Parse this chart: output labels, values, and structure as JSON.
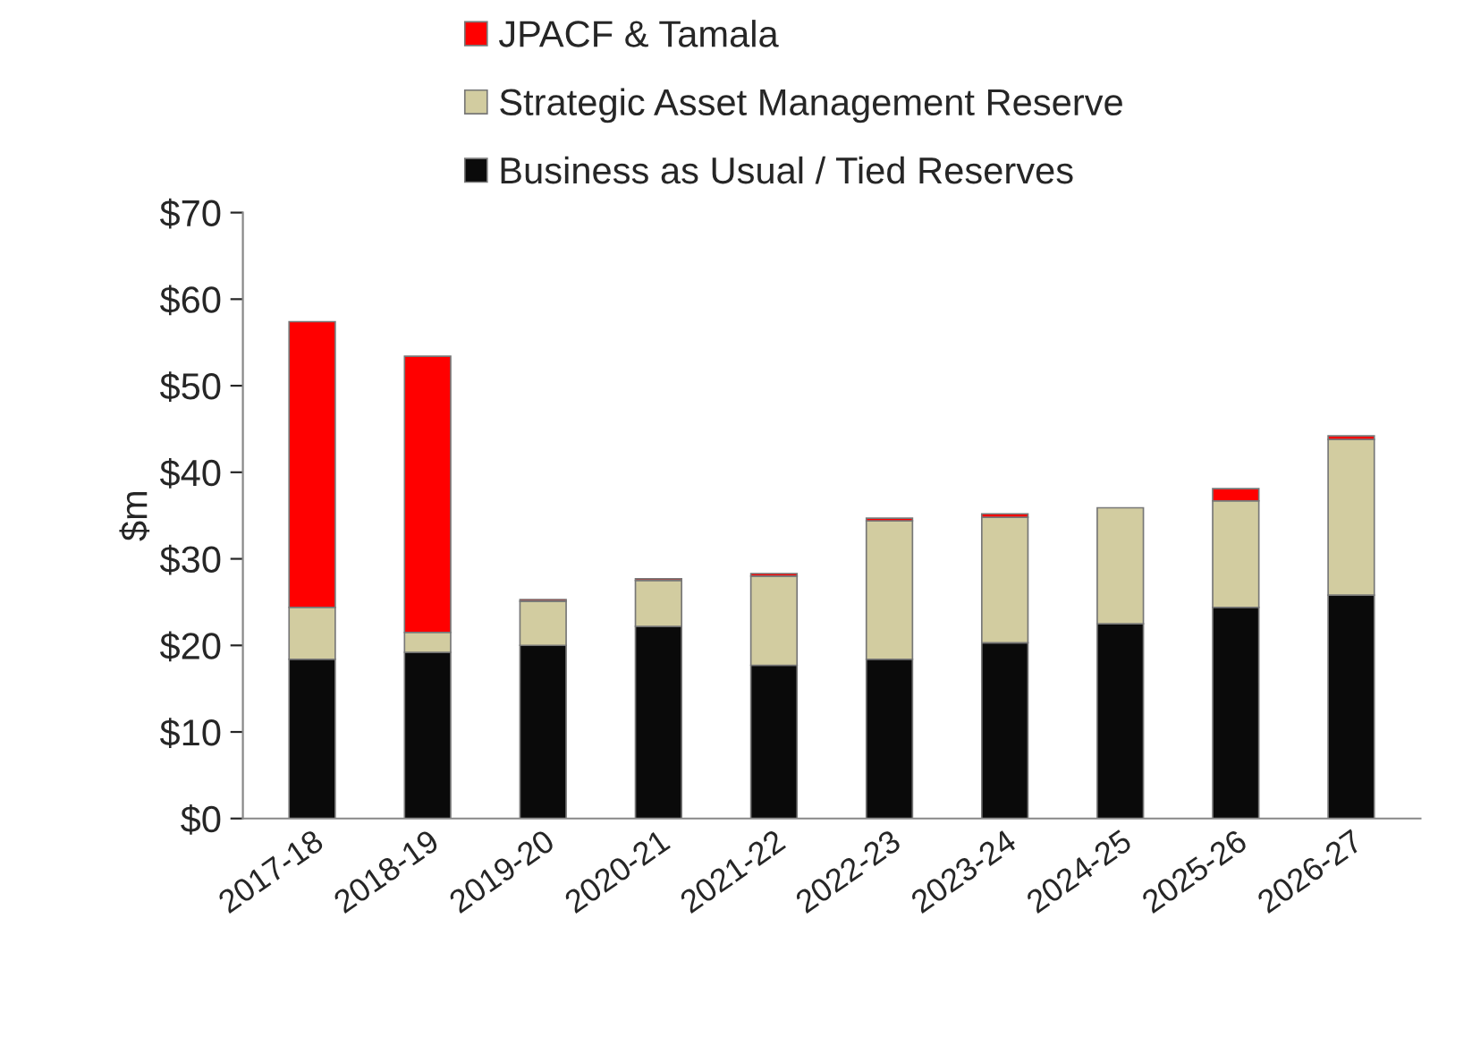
{
  "chart_data": {
    "type": "bar",
    "stacked": true,
    "ylabel": "$m",
    "categories": [
      "2017-18",
      "2018-19",
      "2019-20",
      "2020-21",
      "2021-22",
      "2022-23",
      "2023-24",
      "2024-25",
      "2025-26",
      "2026-27"
    ],
    "series": [
      {
        "name": "Business as Usual / Tied Reserves",
        "color": "#0a0a0a",
        "values": [
          18.4,
          19.2,
          20.0,
          22.2,
          17.7,
          18.4,
          20.3,
          22.5,
          24.4,
          25.8
        ]
      },
      {
        "name": "Strategic Asset Management Reserve",
        "color": "#d2cca0",
        "values": [
          6.0,
          2.3,
          5.1,
          5.3,
          10.3,
          16.0,
          14.5,
          13.4,
          12.3,
          18.0
        ]
      },
      {
        "name": "JPACF & Tamala",
        "color": "#ff0000",
        "values": [
          33.0,
          31.9,
          0.2,
          0.2,
          0.3,
          0.3,
          0.4,
          null,
          1.4,
          0.4
        ]
      }
    ],
    "ylim": [
      0,
      70
    ],
    "yticks": [
      {
        "value": 0,
        "label": "$0"
      },
      {
        "value": 10,
        "label": "$10"
      },
      {
        "value": 20,
        "label": "$20"
      },
      {
        "value": 30,
        "label": "$30"
      },
      {
        "value": 40,
        "label": "$40"
      },
      {
        "value": 50,
        "label": "$50"
      },
      {
        "value": 60,
        "label": "$60"
      },
      {
        "value": 70,
        "label": "$70"
      }
    ],
    "grid": false,
    "legend": "top"
  }
}
